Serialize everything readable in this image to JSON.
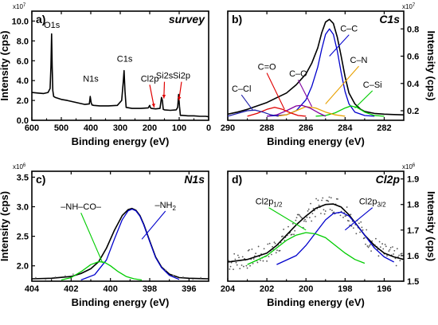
{
  "chart_data": [
    {
      "type": "line",
      "panel_label": "a)",
      "title": "survey",
      "xlabel": "Binding energy (eV)",
      "ylabel": "Intensity (cps)",
      "y_multiplier": "x10",
      "y_multiplier_exp": "7",
      "xlim": [
        600,
        0
      ],
      "ylim": [
        0,
        11
      ],
      "xticks": [
        600,
        500,
        400,
        300,
        200,
        100,
        0
      ],
      "yticks": [
        0.0,
        2.0,
        4.0,
        6.0,
        8.0,
        10.0
      ],
      "ytick_labels": [
        "0.0",
        "2.0",
        "4.0",
        "6.0",
        "8.0",
        "10.0"
      ],
      "ytick_side": "left",
      "series": [
        {
          "color": "#000000",
          "style": "solid",
          "x": [
            600,
            580,
            560,
            545,
            538,
            535,
            533,
            531,
            529,
            526,
            520,
            500,
            480,
            450,
            420,
            405,
            402,
            399,
            396,
            390,
            370,
            340,
            310,
            295,
            290,
            287,
            284,
            280,
            260,
            230,
            205,
            200,
            198,
            195,
            180,
            165,
            160,
            157,
            154,
            150,
            130,
            110,
            105,
            102,
            99,
            96,
            90,
            70,
            50,
            30,
            10,
            0
          ],
          "y": [
            2.8,
            2.75,
            2.7,
            2.8,
            3.2,
            5.5,
            8.7,
            5.5,
            3.0,
            2.4,
            2.3,
            2.1,
            2.0,
            1.8,
            1.6,
            1.65,
            2.4,
            1.8,
            1.55,
            1.5,
            1.45,
            1.45,
            1.5,
            2.0,
            3.8,
            5.0,
            3.0,
            1.3,
            1.2,
            1.2,
            1.25,
            1.5,
            1.3,
            1.2,
            1.15,
            1.2,
            2.3,
            2.0,
            1.1,
            1.05,
            1.0,
            1.05,
            1.3,
            2.6,
            1.4,
            0.5,
            0.5,
            0.45,
            0.45,
            0.4,
            0.4,
            0.35
          ]
        }
      ],
      "annotations": [
        {
          "text": "O1s",
          "x": 532,
          "y": 9.3,
          "arrow": false
        },
        {
          "text": "N1s",
          "x": 400,
          "y": 3.9,
          "arrow": false
        },
        {
          "text": "C1s",
          "x": 285,
          "y": 5.9,
          "arrow": false
        },
        {
          "text": "Cl2p",
          "x": 200,
          "y": 3.9,
          "arrow": true,
          "arrow_to": [
            185,
            1.3
          ],
          "arrow_color": "#e00000"
        },
        {
          "text": "Si2s",
          "x": 150,
          "y": 4.2,
          "arrow": true,
          "arrow_to": [
            152,
            2.2
          ],
          "arrow_color": "#e00000"
        },
        {
          "text": "Si2p",
          "x": 92,
          "y": 4.2,
          "arrow": true,
          "arrow_to": [
            101,
            2.0
          ],
          "arrow_color": "#e00000"
        }
      ]
    },
    {
      "type": "line",
      "panel_label": "b)",
      "title": "C1s",
      "xlabel": "Binding energy (eV)",
      "ylabel": "Intensity (cps)",
      "y_multiplier": "x10",
      "y_multiplier_exp": "7",
      "xlim": [
        290,
        281
      ],
      "ylim": [
        0.13,
        0.93
      ],
      "xticks": [
        290,
        288,
        286,
        284,
        282
      ],
      "yticks": [
        0.2,
        0.4,
        0.6,
        0.8
      ],
      "ytick_labels": [
        "0.2",
        "0.4",
        "0.6",
        "0.8"
      ],
      "ytick_side": "right",
      "series": [
        {
          "color": "#000000",
          "style": "solid",
          "x": [
            290,
            289.5,
            289,
            288.5,
            288,
            287.5,
            287,
            286.5,
            286,
            285.7,
            285.4,
            285.2,
            285.0,
            284.8,
            284.6,
            284.4,
            284.2,
            284.0,
            283.8,
            283.5,
            283.2,
            283.0,
            282.5,
            282,
            281.5,
            281
          ],
          "y": [
            0.175,
            0.19,
            0.21,
            0.235,
            0.26,
            0.295,
            0.33,
            0.39,
            0.47,
            0.55,
            0.66,
            0.77,
            0.85,
            0.87,
            0.84,
            0.74,
            0.6,
            0.45,
            0.33,
            0.25,
            0.21,
            0.195,
            0.18,
            0.175,
            0.172,
            0.17
          ]
        },
        {
          "color": "#0000cc",
          "style": "solid",
          "x": [
            288,
            287,
            286.5,
            286,
            285.7,
            285.4,
            285.2,
            285.0,
            284.8,
            284.6,
            284.4,
            284.2,
            284.0,
            283.8,
            283.5,
            283.0,
            282.5
          ],
          "y": [
            0.16,
            0.17,
            0.2,
            0.28,
            0.38,
            0.52,
            0.65,
            0.76,
            0.8,
            0.76,
            0.64,
            0.48,
            0.34,
            0.25,
            0.19,
            0.165,
            0.16
          ]
        },
        {
          "color": "#00cc00",
          "style": "solid",
          "x": [
            285.5,
            285,
            284.5,
            284.0,
            283.7,
            283.4,
            283.0,
            282.5,
            282
          ],
          "y": [
            0.16,
            0.165,
            0.185,
            0.22,
            0.235,
            0.225,
            0.19,
            0.165,
            0.16
          ]
        },
        {
          "color": "#e8a000",
          "style": "solid",
          "x": [
            287.5,
            287,
            286.5,
            286.0,
            285.5,
            285.0,
            284.5,
            284
          ],
          "y": [
            0.16,
            0.17,
            0.2,
            0.23,
            0.22,
            0.19,
            0.17,
            0.16
          ]
        },
        {
          "color": "#8000a0",
          "style": "solid",
          "x": [
            288,
            287.5,
            287,
            286.5,
            286.2,
            285.8,
            285.3,
            285
          ],
          "y": [
            0.16,
            0.17,
            0.2,
            0.235,
            0.24,
            0.22,
            0.18,
            0.16
          ]
        },
        {
          "color": "#e00000",
          "style": "solid",
          "x": [
            289,
            288.5,
            288,
            287.6,
            287.2,
            286.8,
            286.4,
            286
          ],
          "y": [
            0.16,
            0.18,
            0.21,
            0.225,
            0.21,
            0.185,
            0.165,
            0.16
          ]
        },
        {
          "color": "#2020aa",
          "style": "solid",
          "x": [
            290,
            289.5,
            289.0,
            288.6,
            288.2,
            287.8,
            287.4
          ],
          "y": [
            0.16,
            0.18,
            0.2,
            0.205,
            0.19,
            0.17,
            0.16
          ]
        }
      ],
      "annotations": [
        {
          "text": "C–C",
          "x": 283.8,
          "y": 0.78,
          "line_to": [
            284.8,
            0.6
          ],
          "line_color": "#0000cc"
        },
        {
          "text": "C–N",
          "x": 283.3,
          "y": 0.55,
          "line_to": [
            285.0,
            0.25
          ],
          "line_color": "#e8a000"
        },
        {
          "text": "C–Si",
          "x": 282.6,
          "y": 0.37,
          "line_to": [
            283.5,
            0.22
          ],
          "line_color": "#00cc00"
        },
        {
          "text": "C–O",
          "x": 286.4,
          "y": 0.45,
          "line_to": [
            285.7,
            0.23
          ],
          "line_color": "#8000a0"
        },
        {
          "text": "C=O",
          "x": 288.0,
          "y": 0.5,
          "line_to": [
            287.1,
            0.21
          ],
          "line_color": "#e00000"
        },
        {
          "text": "C–Cl",
          "x": 289.3,
          "y": 0.34,
          "line_to": [
            288.7,
            0.2
          ],
          "line_color": "#2020aa"
        }
      ]
    },
    {
      "type": "line",
      "panel_label": "c)",
      "title": "N1s",
      "xlabel": "Binding energy (eV)",
      "ylabel": "Intensity (cps)",
      "y_multiplier": "x10",
      "y_multiplier_exp": "6",
      "xlim": [
        404,
        395
      ],
      "ylim": [
        1.74,
        3.6
      ],
      "xticks": [
        404,
        402,
        400,
        398,
        396
      ],
      "yticks": [
        2.0,
        2.5,
        3.0,
        3.5
      ],
      "ytick_labels": [
        "2.0",
        "2.5",
        "3.0",
        "3.5"
      ],
      "ytick_side": "left",
      "series": [
        {
          "color": "#000000",
          "style": "solid",
          "x": [
            404,
            403,
            402,
            401.5,
            401,
            400.6,
            400.2,
            399.8,
            399.4,
            399.1,
            398.9,
            398.7,
            398.5,
            398.3,
            398.0,
            397.7,
            397.4,
            397.0,
            396.5,
            396,
            395
          ],
          "y": [
            1.78,
            1.79,
            1.82,
            1.87,
            1.95,
            2.07,
            2.3,
            2.6,
            2.85,
            2.95,
            2.97,
            2.94,
            2.85,
            2.7,
            2.42,
            2.15,
            1.98,
            1.86,
            1.8,
            1.79,
            1.78
          ]
        },
        {
          "color": "#0000cc",
          "style": "solid",
          "x": [
            401.5,
            400.8,
            400.2,
            399.8,
            399.4,
            399.1,
            398.9,
            398.7,
            398.5,
            398.3,
            398.0,
            397.7,
            397.4,
            397.0,
            396.5
          ],
          "y": [
            1.76,
            1.85,
            2.1,
            2.45,
            2.78,
            2.93,
            2.96,
            2.93,
            2.84,
            2.69,
            2.41,
            2.14,
            1.97,
            1.84,
            1.77
          ]
        },
        {
          "color": "#00cc00",
          "style": "solid",
          "x": [
            402.5,
            402,
            401.5,
            401,
            400.6,
            400.3,
            400.0,
            399.6,
            399.2,
            398.8,
            398.4
          ],
          "y": [
            1.76,
            1.8,
            1.9,
            2.02,
            2.07,
            2.06,
            2.0,
            1.9,
            1.82,
            1.78,
            1.76
          ]
        },
        {
          "color": "#cccccc",
          "style": "dots",
          "x": [
            403.8,
            403.3,
            402.8,
            402.3,
            401.9,
            397.2,
            396.8,
            396.3,
            395.8,
            395.4
          ],
          "y": [
            1.8,
            1.77,
            1.81,
            1.83,
            1.86,
            1.93,
            1.84,
            1.81,
            1.77,
            1.8
          ]
        }
      ],
      "annotations": [
        {
          "text": "–NH–CO–",
          "x": 401.5,
          "y": 2.95,
          "line_to": [
            400.4,
            2.05
          ],
          "line_color": "#00cc00"
        },
        {
          "text": "–NH",
          "sub": "2",
          "x": 397.2,
          "y": 2.98,
          "line_to": [
            398.4,
            2.45
          ],
          "line_color": "#0000cc"
        }
      ]
    },
    {
      "type": "line",
      "panel_label": "d)",
      "title": "Cl2p",
      "xlabel": "Binding energy (eV)",
      "ylabel": "Intensity (cps)",
      "y_multiplier": "x10",
      "y_multiplier_exp": "6",
      "xlim": [
        204,
        195
      ],
      "ylim": [
        1.5,
        1.93
      ],
      "xticks": [
        204,
        202,
        200,
        198,
        196
      ],
      "yticks": [
        1.5,
        1.6,
        1.7,
        1.8,
        1.9
      ],
      "ytick_labels": [
        "1.5",
        "1.6",
        "1.7",
        "1.8",
        "1.9"
      ],
      "ytick_side": "right",
      "series": [
        {
          "color": "#000000",
          "style": "solid",
          "x": [
            204,
            203,
            202,
            201.5,
            201,
            200.5,
            200,
            199.5,
            199,
            198.6,
            198.2,
            197.8,
            197.4,
            197,
            196.5,
            196,
            195.5,
            195
          ],
          "y": [
            1.575,
            1.585,
            1.61,
            1.64,
            1.68,
            1.72,
            1.755,
            1.785,
            1.8,
            1.802,
            1.79,
            1.76,
            1.72,
            1.68,
            1.64,
            1.61,
            1.595,
            1.585
          ]
        },
        {
          "color": "#0000cc",
          "style": "solid",
          "x": [
            201.5,
            200.5,
            200,
            199.5,
            199,
            198.6,
            198.2,
            197.8,
            197.4,
            197,
            196.5,
            196,
            195.5
          ],
          "y": [
            1.565,
            1.6,
            1.64,
            1.69,
            1.74,
            1.765,
            1.77,
            1.755,
            1.72,
            1.68,
            1.63,
            1.595,
            1.575
          ]
        },
        {
          "color": "#00cc00",
          "style": "solid",
          "x": [
            203,
            202,
            201.5,
            201,
            200.5,
            200,
            199.5,
            199,
            198.5,
            198,
            197.5,
            197
          ],
          "y": [
            1.565,
            1.6,
            1.63,
            1.66,
            1.68,
            1.69,
            1.685,
            1.67,
            1.64,
            1.61,
            1.585,
            1.57
          ]
        }
      ],
      "noise": true,
      "annotations": [
        {
          "text": "Cl2p",
          "sub": "1/2",
          "x": 201.9,
          "y": 1.8,
          "line_to": [
            200.0,
            1.7
          ],
          "line_color": "#00cc00"
        },
        {
          "text": "Cl2p",
          "sub": "3/2",
          "x": 196.6,
          "y": 1.8,
          "line_to": [
            198.0,
            1.7
          ],
          "line_color": "#0000cc"
        }
      ]
    }
  ]
}
